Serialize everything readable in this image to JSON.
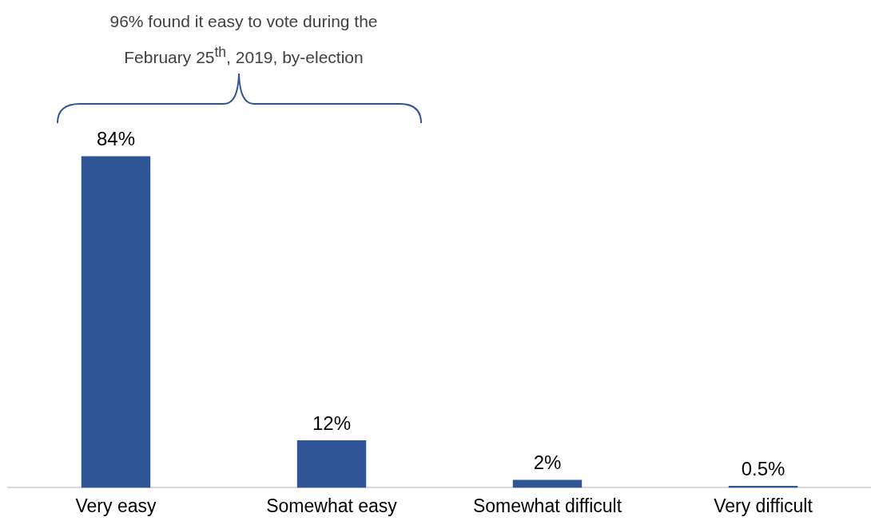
{
  "chart_data": {
    "type": "bar",
    "categories": [
      "Very easy",
      "Somewhat easy",
      "Somewhat difficult",
      "Very difficult"
    ],
    "values": [
      84,
      12,
      2,
      0.5
    ],
    "color": "#2f5597",
    "value_labels": [
      "84%",
      "12%",
      "2%",
      "0.5%"
    ],
    "annotations": [
      "96% found it easy to vote during the February 25$^{th}$, 2019, by-election"
    ],
    "grid": false,
    "legend": false
  }
}
